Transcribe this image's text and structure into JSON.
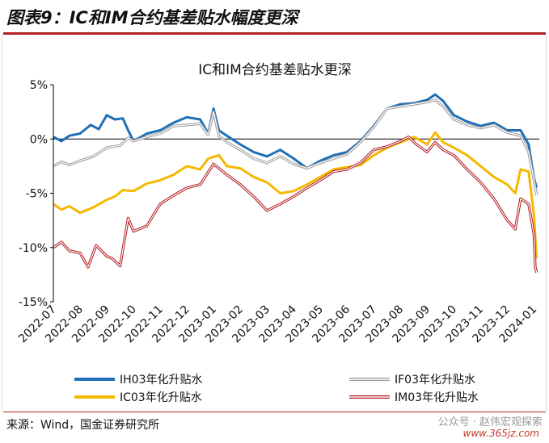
{
  "figure_title": "图表9：IC和IM合约基差贴水幅度更深",
  "source": "来源：Wind，国金证券研究所",
  "watermark": "公众号 · 赵伟宏观探索",
  "watermark_site": "www.365jz.com",
  "colors": {
    "IH": "#1f6fb5",
    "IF": "#9a9a9a",
    "IC": "#f5b800",
    "IM": "#b0191e",
    "rule": "#b22222"
  },
  "chart_data": {
    "type": "line",
    "title": "IC和IM合约基差贴水更深",
    "ylim": [
      -15,
      5
    ],
    "yticks": [
      5,
      0,
      -5,
      -10,
      -15
    ],
    "ytick_labels": [
      "5%",
      "0%",
      "-5%",
      "-10%",
      "-15%"
    ],
    "x_labels": [
      "2022-07",
      "2022-08",
      "2022-09",
      "2022-10",
      "2022-11",
      "2022-12",
      "2023-01",
      "2023-02",
      "2023-03",
      "2023-04",
      "2023-05",
      "2023-06",
      "2023-07",
      "2023-08",
      "2023-09",
      "2023-10",
      "2023-11",
      "2023-12",
      "2024-01"
    ],
    "x_range": [
      0,
      18.2
    ],
    "legend": [
      "IH03年化升贴水",
      "IF03年化升贴水",
      "IC03年化升贴水",
      "IM03年化升贴水"
    ],
    "series": [
      {
        "name": "IH03年化升贴水",
        "key": "IH",
        "style": "solid",
        "points": [
          [
            0,
            0.2
          ],
          [
            0.3,
            -0.2
          ],
          [
            0.6,
            0.3
          ],
          [
            1,
            0.5
          ],
          [
            1.4,
            1.3
          ],
          [
            1.7,
            0.9
          ],
          [
            2,
            2.2
          ],
          [
            2.3,
            1.8
          ],
          [
            2.6,
            1.9
          ],
          [
            2.8,
            0.8
          ],
          [
            3,
            -0.2
          ],
          [
            3.5,
            0.5
          ],
          [
            4,
            0.8
          ],
          [
            4.5,
            1.5
          ],
          [
            5,
            2
          ],
          [
            5.5,
            1.8
          ],
          [
            5.8,
            0.5
          ],
          [
            6,
            2.8
          ],
          [
            6.2,
            0.8
          ],
          [
            6.5,
            0.3
          ],
          [
            7,
            -0.5
          ],
          [
            7.5,
            -1.2
          ],
          [
            8,
            -1.6
          ],
          [
            8.5,
            -1
          ],
          [
            9,
            -1.8
          ],
          [
            9.5,
            -2.7
          ],
          [
            10,
            -2
          ],
          [
            10.5,
            -1.5
          ],
          [
            11,
            -1.2
          ],
          [
            11.5,
            -0.2
          ],
          [
            12,
            1.2
          ],
          [
            12.5,
            2.8
          ],
          [
            13,
            3.2
          ],
          [
            13.5,
            3.3
          ],
          [
            14,
            3.6
          ],
          [
            14.3,
            4.1
          ],
          [
            14.6,
            3.5
          ],
          [
            15,
            2.2
          ],
          [
            15.5,
            1.6
          ],
          [
            16,
            1.2
          ],
          [
            16.5,
            1.5
          ],
          [
            17,
            0.8
          ],
          [
            17.5,
            0.8
          ],
          [
            17.8,
            -0.5
          ],
          [
            18,
            -3.6
          ],
          [
            18.1,
            -4.5
          ]
        ]
      },
      {
        "name": "IF03年化升贴水",
        "key": "IF",
        "style": "double",
        "points": [
          [
            0,
            -2.5
          ],
          [
            0.3,
            -2.1
          ],
          [
            0.6,
            -2.4
          ],
          [
            1,
            -2
          ],
          [
            1.5,
            -1.6
          ],
          [
            2,
            -0.8
          ],
          [
            2.5,
            -0.6
          ],
          [
            2.8,
            0.1
          ],
          [
            3,
            -0.2
          ],
          [
            3.5,
            0.2
          ],
          [
            4,
            0.5
          ],
          [
            4.5,
            1.2
          ],
          [
            5,
            1.3
          ],
          [
            5.5,
            1.4
          ],
          [
            5.8,
            0.4
          ],
          [
            6,
            2.5
          ],
          [
            6.2,
            0.3
          ],
          [
            6.5,
            -0.3
          ],
          [
            7,
            -1
          ],
          [
            7.5,
            -1.8
          ],
          [
            8,
            -2.2
          ],
          [
            8.5,
            -1.6
          ],
          [
            9,
            -2.3
          ],
          [
            9.5,
            -2.7
          ],
          [
            10,
            -2.2
          ],
          [
            10.5,
            -1.8
          ],
          [
            11,
            -1.4
          ],
          [
            11.5,
            -0.3
          ],
          [
            12,
            1.1
          ],
          [
            12.5,
            2.8
          ],
          [
            13,
            3
          ],
          [
            13.5,
            3.2
          ],
          [
            14,
            3.4
          ],
          [
            14.3,
            3.6
          ],
          [
            14.6,
            3
          ],
          [
            15,
            1.8
          ],
          [
            15.5,
            1.3
          ],
          [
            16,
            1
          ],
          [
            16.5,
            1.3
          ],
          [
            17,
            0.6
          ],
          [
            17.5,
            0.3
          ],
          [
            17.8,
            -1.2
          ],
          [
            18,
            -3.8
          ],
          [
            18.1,
            -5.2
          ]
        ]
      },
      {
        "name": "IC03年化升贴水",
        "key": "IC",
        "style": "solid",
        "points": [
          [
            0,
            -6
          ],
          [
            0.3,
            -6.5
          ],
          [
            0.6,
            -6.2
          ],
          [
            1,
            -6.8
          ],
          [
            1.5,
            -6.3
          ],
          [
            2,
            -5.6
          ],
          [
            2.3,
            -5.3
          ],
          [
            2.6,
            -4.7
          ],
          [
            3,
            -4.8
          ],
          [
            3.5,
            -4.1
          ],
          [
            4,
            -3.8
          ],
          [
            4.5,
            -3.3
          ],
          [
            5,
            -2.5
          ],
          [
            5.5,
            -2.8
          ],
          [
            5.8,
            -1.8
          ],
          [
            6.2,
            -1.5
          ],
          [
            6.5,
            -2.5
          ],
          [
            7,
            -2.7
          ],
          [
            7.5,
            -3.5
          ],
          [
            8,
            -4
          ],
          [
            8.5,
            -5
          ],
          [
            9,
            -4.8
          ],
          [
            9.5,
            -4.2
          ],
          [
            10,
            -3.5
          ],
          [
            10.5,
            -2.8
          ],
          [
            11,
            -2.6
          ],
          [
            11.5,
            -2.4
          ],
          [
            12,
            -1.5
          ],
          [
            12.5,
            -0.8
          ],
          [
            13,
            -0.3
          ],
          [
            13.5,
            0.2
          ],
          [
            14,
            -0.5
          ],
          [
            14.3,
            0.6
          ],
          [
            14.6,
            -0.3
          ],
          [
            15,
            -0.8
          ],
          [
            15.5,
            -1.5
          ],
          [
            16,
            -2.5
          ],
          [
            16.5,
            -3.5
          ],
          [
            17,
            -4.2
          ],
          [
            17.3,
            -5
          ],
          [
            17.5,
            -2.8
          ],
          [
            17.8,
            -3
          ],
          [
            18,
            -7
          ],
          [
            18.1,
            -11
          ]
        ]
      },
      {
        "name": "IM03年化升贴水",
        "key": "IM",
        "style": "double",
        "points": [
          [
            0,
            -10
          ],
          [
            0.3,
            -9.5
          ],
          [
            0.6,
            -10.3
          ],
          [
            1,
            -10.5
          ],
          [
            1.3,
            -11.8
          ],
          [
            1.6,
            -9.8
          ],
          [
            2,
            -10.8
          ],
          [
            2.2,
            -11
          ],
          [
            2.5,
            -11.7
          ],
          [
            2.8,
            -7.3
          ],
          [
            3,
            -8.5
          ],
          [
            3.5,
            -8
          ],
          [
            4,
            -6
          ],
          [
            4.5,
            -5.2
          ],
          [
            5,
            -4.5
          ],
          [
            5.5,
            -4.2
          ],
          [
            6,
            -2.3
          ],
          [
            6.5,
            -3.3
          ],
          [
            7,
            -4.2
          ],
          [
            7.5,
            -5.3
          ],
          [
            8,
            -6.6
          ],
          [
            8.5,
            -6
          ],
          [
            9,
            -5.3
          ],
          [
            9.5,
            -4.5
          ],
          [
            10,
            -3.8
          ],
          [
            10.5,
            -3
          ],
          [
            11,
            -2.8
          ],
          [
            11.5,
            -2.2
          ],
          [
            12,
            -1
          ],
          [
            12.5,
            -0.7
          ],
          [
            13,
            -0.2
          ],
          [
            13.3,
            0.2
          ],
          [
            13.6,
            -0.5
          ],
          [
            14,
            -1.2
          ],
          [
            14.3,
            -0.3
          ],
          [
            14.6,
            -1
          ],
          [
            15,
            -1.5
          ],
          [
            15.5,
            -2.8
          ],
          [
            16,
            -4
          ],
          [
            16.5,
            -5.5
          ],
          [
            17,
            -7.5
          ],
          [
            17.3,
            -8.3
          ],
          [
            17.5,
            -5.5
          ],
          [
            17.8,
            -6
          ],
          [
            18,
            -8.8
          ],
          [
            18.05,
            -11.8
          ],
          [
            18.1,
            -12.3
          ]
        ]
      }
    ]
  }
}
